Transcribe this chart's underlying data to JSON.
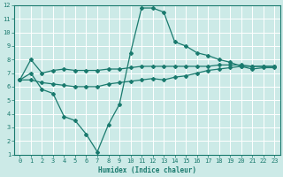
{
  "xlabel": "Humidex (Indice chaleur)",
  "background_color": "#cceae7",
  "grid_color": "#ffffff",
  "line_color": "#1a7a6e",
  "xlim": [
    -0.5,
    23.5
  ],
  "ylim": [
    1,
    12
  ],
  "xticks": [
    0,
    1,
    2,
    3,
    4,
    5,
    6,
    7,
    8,
    9,
    10,
    11,
    12,
    13,
    14,
    15,
    16,
    17,
    18,
    19,
    20,
    21,
    22,
    23
  ],
  "yticks": [
    1,
    2,
    3,
    4,
    5,
    6,
    7,
    8,
    9,
    10,
    11,
    12
  ],
  "line1_x": [
    0,
    1,
    2,
    3,
    4,
    5,
    6,
    7,
    8,
    9,
    10,
    11,
    12,
    13,
    14,
    15,
    16,
    17,
    18,
    19,
    20,
    21,
    22,
    23
  ],
  "line1_y": [
    6.5,
    8.0,
    7.0,
    7.2,
    7.3,
    7.2,
    7.2,
    7.2,
    7.3,
    7.3,
    7.4,
    7.5,
    7.5,
    7.5,
    7.5,
    7.5,
    7.5,
    7.5,
    7.6,
    7.6,
    7.6,
    7.5,
    7.5,
    7.5
  ],
  "line2_x": [
    0,
    1,
    2,
    3,
    4,
    5,
    6,
    7,
    8,
    9,
    10,
    11,
    12,
    13,
    14,
    15,
    16,
    17,
    18,
    19,
    20,
    21,
    22,
    23
  ],
  "line2_y": [
    6.5,
    7.0,
    5.8,
    5.5,
    3.8,
    3.5,
    2.5,
    1.2,
    3.2,
    4.7,
    8.5,
    11.8,
    11.8,
    11.5,
    9.3,
    9.0,
    8.5,
    8.3,
    8.0,
    7.8,
    7.5,
    7.3,
    7.4,
    7.4
  ],
  "line3_x": [
    0,
    1,
    2,
    3,
    4,
    5,
    6,
    7,
    8,
    9,
    10,
    11,
    12,
    13,
    14,
    15,
    16,
    17,
    18,
    19,
    20,
    21,
    22,
    23
  ],
  "line3_y": [
    6.5,
    6.5,
    6.3,
    6.2,
    6.1,
    6.0,
    6.0,
    6.0,
    6.2,
    6.3,
    6.4,
    6.5,
    6.6,
    6.5,
    6.7,
    6.8,
    7.0,
    7.2,
    7.3,
    7.4,
    7.5,
    7.5,
    7.5,
    7.5
  ]
}
